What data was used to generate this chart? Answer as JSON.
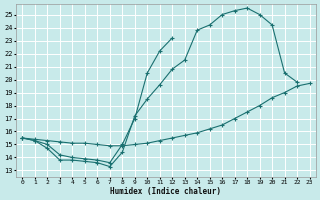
{
  "bg_color": "#c8eaea",
  "grid_color": "#ffffff",
  "line_color": "#1a7070",
  "xlabel": "Humidex (Indice chaleur)",
  "xlim": [
    -0.5,
    23.5
  ],
  "ylim": [
    12.5,
    25.8
  ],
  "xticks": [
    0,
    1,
    2,
    3,
    4,
    5,
    6,
    7,
    8,
    9,
    10,
    11,
    12,
    13,
    14,
    15,
    16,
    17,
    18,
    19,
    20,
    21,
    22,
    23
  ],
  "yticks": [
    13,
    14,
    15,
    16,
    17,
    18,
    19,
    20,
    21,
    22,
    23,
    24,
    25
  ],
  "curve1_x": [
    0,
    1,
    2,
    3,
    4,
    5,
    6,
    7,
    8,
    9,
    10,
    11,
    12,
    13,
    14,
    15,
    16,
    17,
    18,
    19,
    20,
    21,
    22
  ],
  "curve1_y": [
    15.5,
    15.3,
    14.7,
    13.8,
    13.8,
    13.7,
    13.6,
    13.3,
    14.4,
    17.2,
    18.5,
    19.6,
    20.8,
    21.5,
    23.8,
    24.2,
    25.0,
    25.3,
    25.5,
    25.0,
    24.2,
    20.5,
    19.8
  ],
  "curve2_x": [
    0,
    1,
    2,
    3,
    4,
    5,
    6,
    7,
    8,
    9,
    10,
    11,
    12
  ],
  "curve2_y": [
    15.5,
    15.3,
    15.0,
    14.2,
    14.0,
    13.9,
    13.8,
    13.6,
    15.0,
    17.0,
    20.5,
    22.2,
    23.2
  ],
  "curve3_x": [
    0,
    1,
    2,
    3,
    4,
    5,
    6,
    7,
    8,
    9,
    10,
    11,
    12,
    13,
    14,
    15,
    16,
    17,
    18,
    19,
    20,
    21,
    22,
    23
  ],
  "curve3_y": [
    15.5,
    15.4,
    15.3,
    15.2,
    15.1,
    15.1,
    15.0,
    14.9,
    14.9,
    15.0,
    15.1,
    15.3,
    15.5,
    15.7,
    15.9,
    16.2,
    16.5,
    17.0,
    17.5,
    18.0,
    18.6,
    19.0,
    19.5,
    19.7
  ]
}
